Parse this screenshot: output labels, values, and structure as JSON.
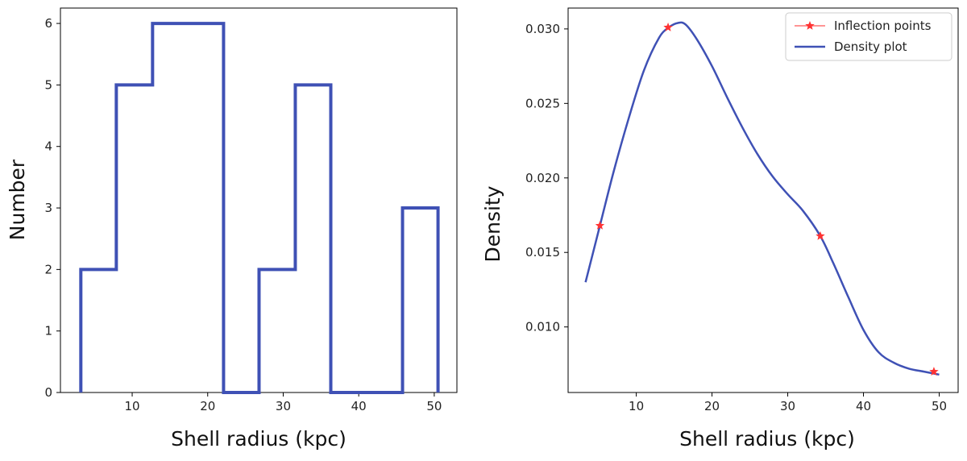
{
  "chart_data": [
    {
      "type": "histogram",
      "title": "",
      "xlabel": "Shell radius (kpc)",
      "ylabel": "Number",
      "xlim": [
        0.5,
        53
      ],
      "ylim": [
        0,
        6.25
      ],
      "xticks": [
        10,
        20,
        30,
        40,
        50
      ],
      "yticks": [
        0,
        1,
        2,
        3,
        4,
        5,
        6
      ],
      "bin_edges": [
        3.2,
        7.9,
        12.7,
        17.4,
        22.1,
        26.8,
        31.6,
        36.3,
        41.0,
        45.8,
        50.5
      ],
      "counts": [
        2,
        5,
        6,
        6,
        0,
        2,
        5,
        0,
        0,
        3
      ],
      "color": "#3f51b5",
      "style": "step"
    },
    {
      "type": "line",
      "title": "",
      "xlabel": "Shell radius (kpc)",
      "ylabel": "Density",
      "xlim": [
        1,
        52.5
      ],
      "ylim": [
        0.0056,
        0.0314
      ],
      "xticks": [
        10,
        20,
        30,
        40,
        50
      ],
      "yticks": [
        0.01,
        0.015,
        0.02,
        0.025,
        0.03
      ],
      "yticklabels": [
        "0.010",
        "0.015",
        "0.020",
        "0.025",
        "0.030"
      ],
      "series": [
        {
          "name": "Density plot",
          "color": "#3f51b5",
          "x": [
            3.3,
            5.2,
            7,
            9,
            11,
            13,
            14.3,
            15.5,
            16.5,
            18,
            20,
            22,
            24,
            26,
            28,
            30,
            32,
            34.3,
            36,
            38,
            40,
            42,
            44,
            46,
            48,
            50
          ],
          "y": [
            0.013,
            0.0168,
            0.0204,
            0.024,
            0.0272,
            0.0294,
            0.0301,
            0.0304,
            0.0303,
            0.0293,
            0.0275,
            0.0254,
            0.0234,
            0.0216,
            0.0201,
            0.0189,
            0.0178,
            0.0161,
            0.0143,
            0.012,
            0.0098,
            0.0083,
            0.0076,
            0.0072,
            0.007,
            0.0068
          ]
        },
        {
          "name": "Inflection points",
          "color": "#ff3333",
          "marker": "star",
          "x": [
            5.2,
            14.2,
            34.3,
            49.3
          ],
          "y": [
            0.0168,
            0.0301,
            0.0161,
            0.007
          ]
        }
      ],
      "legend_position": "top-right"
    }
  ]
}
